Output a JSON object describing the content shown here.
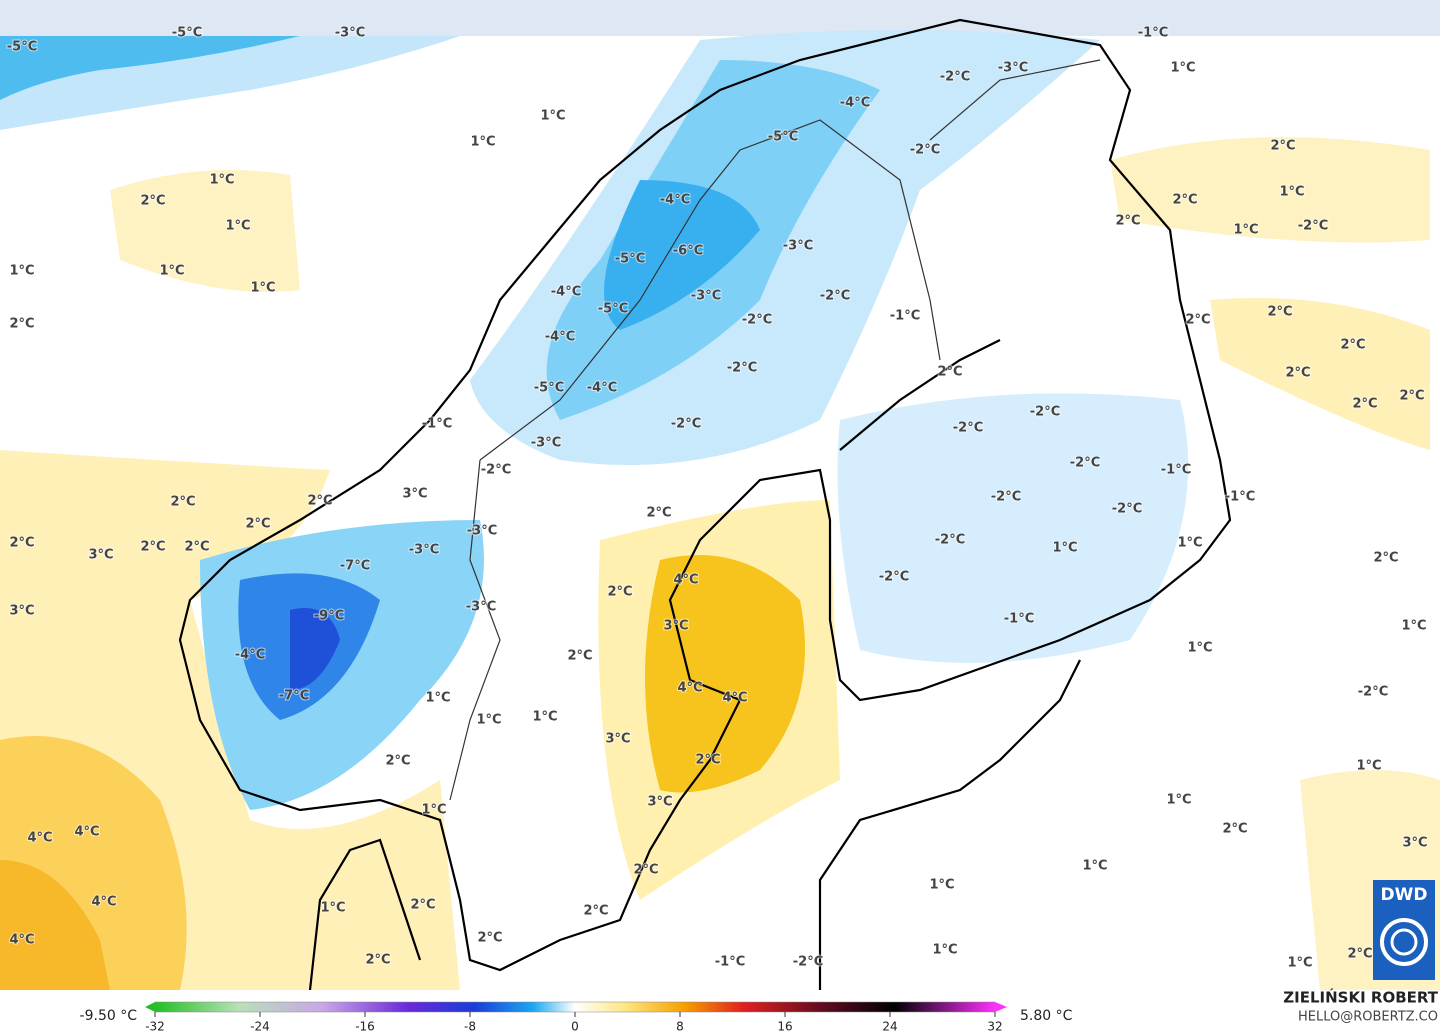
{
  "map": {
    "labels": [
      "-5°C",
      "-5°C",
      "-3°C",
      "-1°C",
      "1°C",
      "-2°C",
      "-3°C",
      "-4°C",
      "-5°C",
      "-2°C",
      "1°C",
      "1°C",
      "2°C",
      "1°C",
      "2°C",
      "1°C",
      "1°C",
      "1°C",
      "1°C",
      "2°C",
      "-4°C",
      "-6°C",
      "-5°C",
      "-3°C",
      "-4°C",
      "-3°C",
      "-2°C",
      "-5°C",
      "-2°C",
      "-1°C",
      "-4°C",
      "-2°C",
      "-5°C",
      "-4°C",
      "2°C",
      "2°C",
      "1°C",
      "2°C",
      "1°C",
      "-2°C",
      "2°C",
      "2°C",
      "2°C",
      "2°C",
      "2°C",
      "2°C",
      "-1°C",
      "-3°C",
      "-2°C",
      "-2°C",
      "-2°C",
      "-2°C",
      "-2°C",
      "-1°C",
      "-1°C",
      "2°C",
      "2°C",
      "3°C",
      "2°C",
      "-2°C",
      "-2°C",
      "2°C",
      "2°C",
      "3°C",
      "2°C",
      "2°C",
      "-3°C",
      "-2°C",
      "1°C",
      "1°C",
      "2°C",
      "-3°C",
      "-7°C",
      "4°C",
      "2°C",
      "-2°C",
      "3°C",
      "-9°C",
      "-3°C",
      "3°C",
      "-1°C",
      "1°C",
      "-4°C",
      "2°C",
      "1°C",
      "-7°C",
      "4°C",
      "4°C",
      "1°C",
      "1°C",
      "1°C",
      "-2°C",
      "3°C",
      "2°C",
      "2°C",
      "1°C",
      "1°C",
      "3°C",
      "1°C",
      "2°C",
      "4°C",
      "4°C",
      "3°C",
      "2°C",
      "1°C",
      "4°C",
      "1°C",
      "2°C",
      "1°C",
      "2°C",
      "2°C",
      "4°C",
      "1°C",
      "2°C",
      "-1°C",
      "-2°C",
      "1°C",
      "2°C"
    ],
    "colorbar": {
      "min_label": "-9.50 °C",
      "max_label": "5.80 °C",
      "range": [
        -32,
        32
      ],
      "ticks": [
        -32,
        -24,
        -16,
        -8,
        0,
        8,
        16,
        24,
        32
      ]
    },
    "author": "ZIELIŃSKI ROBERT",
    "email": "HELLO@ROBERTZ.CO",
    "logo": "DWD"
  }
}
